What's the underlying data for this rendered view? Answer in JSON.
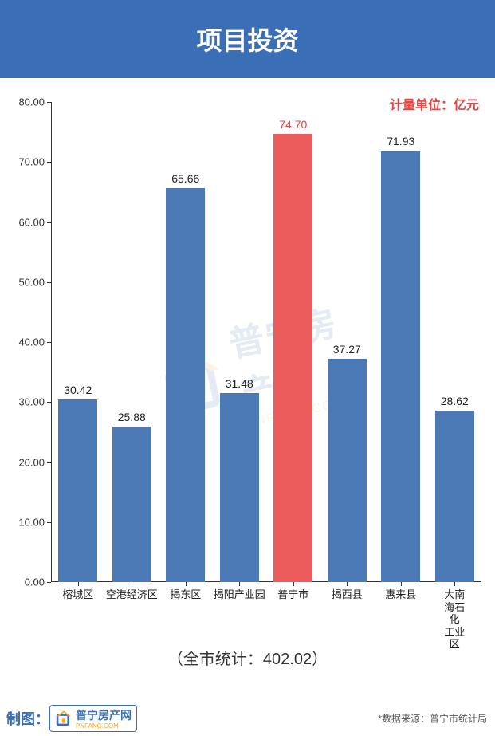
{
  "header": {
    "title": "项目投资",
    "bg_color": "#3a6fb7",
    "font_size": 32
  },
  "chart": {
    "type": "bar",
    "unit_label": "计量单位：亿元",
    "unit_color": "#e64545",
    "unit_fontsize": 16,
    "ylim": [
      0,
      80
    ],
    "ytick_step": 10,
    "ytick_decimals": 2,
    "bar_width_ratio": 0.72,
    "default_bar_color": "#4a79b5",
    "highlight_bar_color": "#ec5c5c",
    "value_label_color": "#222",
    "highlight_value_color": "#e64545",
    "categories": [
      {
        "label": "榕城区",
        "value": 30.42,
        "highlight": false
      },
      {
        "label": "空港经济区",
        "value": 25.88,
        "highlight": false
      },
      {
        "label": "揭东区",
        "value": 65.66,
        "highlight": false
      },
      {
        "label": "揭阳产业园",
        "value": 31.48,
        "highlight": false
      },
      {
        "label": "普宁市",
        "value": 74.7,
        "highlight": true
      },
      {
        "label": "揭西县",
        "value": 37.27,
        "highlight": false
      },
      {
        "label": "惠来县",
        "value": 71.93,
        "highlight": false
      },
      {
        "label": "大南海石化\n工业区",
        "value": 28.62,
        "highlight": false
      }
    ],
    "total_label": "（全市统计：402.02）",
    "axis_color": "#333333",
    "label_fontsize": 13,
    "value_fontsize": 14
  },
  "watermark": {
    "cn": "普宁房产网",
    "en": "PNFANG.COM",
    "icon_color_outer": "#3a6fb7",
    "icon_color_inner": "#f5a623"
  },
  "footer": {
    "credit_prefix": "制图：",
    "credit_color": "#3a6fb7",
    "logo_cn": "普宁房产网",
    "logo_en": "PNFANG.COM",
    "source": "*数据来源：普宁市统计局"
  }
}
